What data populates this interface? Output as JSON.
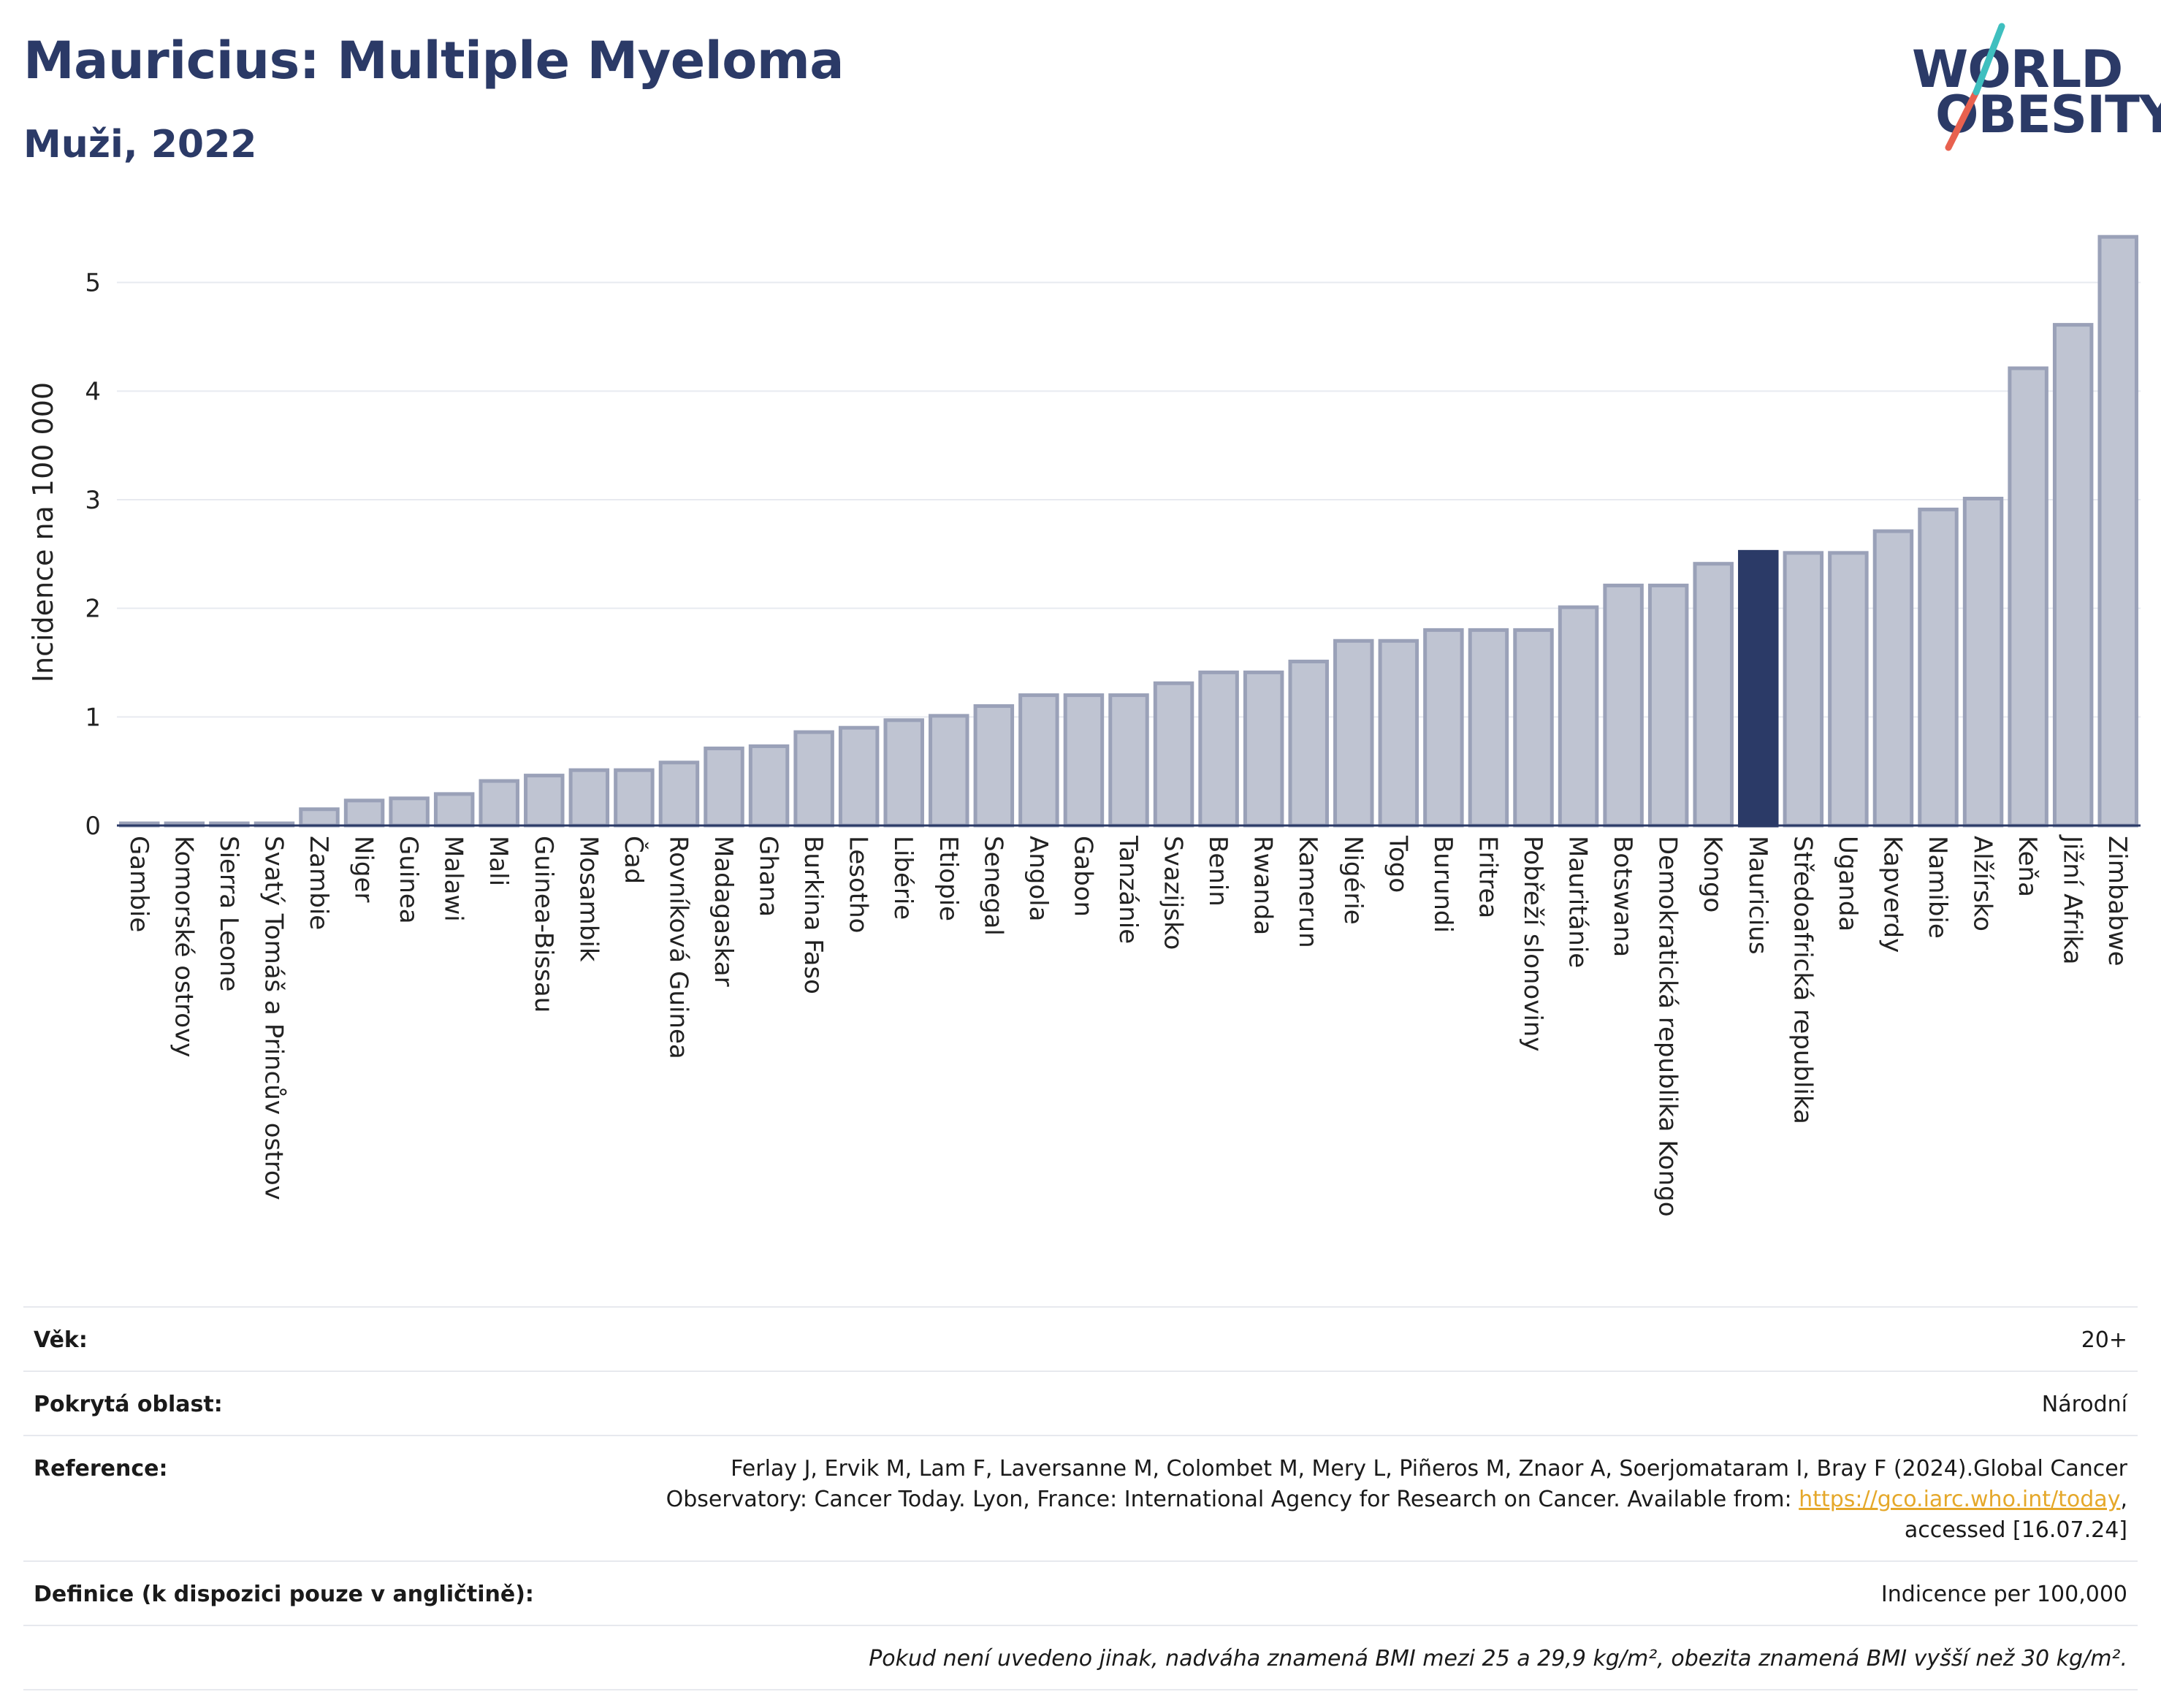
{
  "header": {
    "title": "Mauricius: Multiple Myeloma",
    "subtitle": "Muži, 2022"
  },
  "logo": {
    "line1": "WORLD",
    "line2": "OBESITY",
    "colors": [
      "#2b3a67",
      "#e8614f",
      "#3fbfbf"
    ]
  },
  "chart_data": {
    "type": "bar",
    "title": "Mauricius: Multiple Myeloma",
    "subtitle": "Muži, 2022",
    "xlabel": "",
    "ylabel": "Incidence na 100 000",
    "ylim": [
      0,
      5.5
    ],
    "yticks": [
      0,
      1,
      2,
      3,
      4,
      5
    ],
    "grid": true,
    "highlight": "Mauricius",
    "colors": {
      "bar": "#bfc4d2",
      "bar_edge": "#9aa1b8",
      "highlight": "#2b3a67"
    },
    "categories": [
      "Gambie",
      "Komorské ostrovy",
      "Sierra Leone",
      "Svatý Tomáš a Princův ostrov",
      "Zambie",
      "Niger",
      "Guinea",
      "Malawi",
      "Mali",
      "Guinea-Bissau",
      "Mosambik",
      "Čad",
      "Rovníková Guinea",
      "Madagaskar",
      "Ghana",
      "Burkina Faso",
      "Lesotho",
      "Libérie",
      "Etiopie",
      "Senegal",
      "Angola",
      "Gabon",
      "Tanzánie",
      "Svazijsko",
      "Benin",
      "Rwanda",
      "Kamerun",
      "Nigérie",
      "Togo",
      "Burundi",
      "Eritrea",
      "Pobřeží slonoviny",
      "Mauritánie",
      "Botswana",
      "Demokratická republika Kongo",
      "Kongo",
      "Mauricius",
      "Středoafrická republika",
      "Uganda",
      "Kapverdy",
      "Namibie",
      "Alžírsko",
      "Keňa",
      "Jižní Afrika",
      "Zimbabwe"
    ],
    "values": [
      0.02,
      0.02,
      0.02,
      0.02,
      0.15,
      0.23,
      0.25,
      0.29,
      0.41,
      0.46,
      0.51,
      0.51,
      0.58,
      0.71,
      0.73,
      0.86,
      0.9,
      0.97,
      1.01,
      1.1,
      1.2,
      1.2,
      1.2,
      1.31,
      1.41,
      1.41,
      1.51,
      1.7,
      1.7,
      1.8,
      1.8,
      1.8,
      2.01,
      2.21,
      2.21,
      2.41,
      2.52,
      2.51,
      2.51,
      2.71,
      2.91,
      3.01,
      4.21,
      4.61,
      5.42
    ]
  },
  "info": {
    "rows": [
      {
        "label": "Věk:",
        "value": "20+"
      },
      {
        "label": "Pokrytá oblast:",
        "value": "Národní"
      },
      {
        "label": "Reference:",
        "value_line1": "Ferlay J, Ervik M, Lam F, Laversanne M, Colombet M, Mery L, Piñeros M, Znaor A, Soerjomataram I, Bray F (2024).Global Cancer",
        "value_line2_prefix": "Observatory: Cancer Today. Lyon, France: International Agency for Research on Cancer. Available from: ",
        "link": "https://gco.iarc.who.int/today",
        "value_line2_suffix": ",",
        "value_line3": "accessed [16.07.24]"
      },
      {
        "label": "Definice (k dispozici pouze v angličtině):",
        "value": "Indicence per 100,000"
      }
    ],
    "note": "Pokud není uvedeno jinak, nadváha znamená BMI mezi 25 a 29,9 kg/m², obezita znamená BMI vyšší než 30 kg/m²."
  }
}
